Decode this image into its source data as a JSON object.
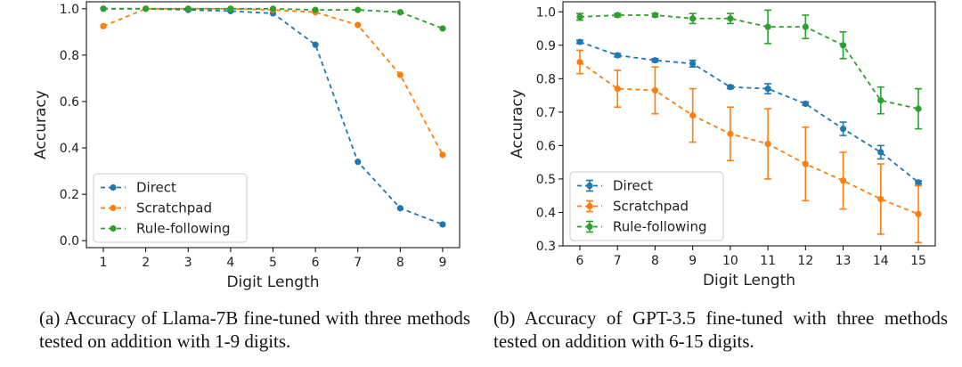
{
  "captions": {
    "a": "(a) Accuracy of Llama-7B fine-tuned with three methods tested on addition with 1-9 digits.",
    "b": "(b) Accuracy of GPT-3.5 fine-tuned with three methods tested on addition with 6-15 digits."
  },
  "chart_data": [
    {
      "type": "line",
      "xlabel": "Digit Length",
      "ylabel": "Accuracy",
      "x": [
        1,
        2,
        3,
        4,
        5,
        6,
        7,
        8,
        9
      ],
      "xlim": [
        0.6,
        9.4
      ],
      "ylim": [
        -0.03,
        1.03
      ],
      "yticks": [
        0.0,
        0.2,
        0.4,
        0.6,
        0.8,
        1.0
      ],
      "yticklabels": [
        "0.0",
        "0.2",
        "0.4",
        "0.6",
        "0.8",
        "1.0"
      ],
      "grid": false,
      "legend": "lower-left",
      "error_bars": false,
      "series": [
        {
          "name": "Direct",
          "color": "#1f77b4",
          "values": [
            1.0,
            1.0,
            0.995,
            0.99,
            0.98,
            0.845,
            0.34,
            0.14,
            0.07
          ]
        },
        {
          "name": "Scratchpad",
          "color": "#ff7f0e",
          "values": [
            0.925,
            1.0,
            1.0,
            1.0,
            0.995,
            0.985,
            0.93,
            0.715,
            0.37
          ]
        },
        {
          "name": "Rule-following",
          "color": "#2ca02c",
          "values": [
            1.0,
            1.0,
            1.0,
            1.0,
            1.0,
            0.995,
            0.995,
            0.985,
            0.915
          ]
        }
      ]
    },
    {
      "type": "line",
      "xlabel": "Digit Length",
      "ylabel": "Accuracy",
      "x": [
        6,
        7,
        8,
        9,
        10,
        11,
        12,
        13,
        14,
        15
      ],
      "xlim": [
        5.55,
        15.45
      ],
      "ylim": [
        0.3,
        1.03
      ],
      "yticks": [
        0.3,
        0.4,
        0.5,
        0.6,
        0.7,
        0.8,
        0.9,
        1.0
      ],
      "yticklabels": [
        "0.3",
        "0.4",
        "0.5",
        "0.6",
        "0.7",
        "0.8",
        "0.9",
        "1.0"
      ],
      "grid": false,
      "legend": "lower-left",
      "error_bars": true,
      "series": [
        {
          "name": "Direct",
          "color": "#1f77b4",
          "values": [
            0.91,
            0.87,
            0.855,
            0.845,
            0.775,
            0.77,
            0.725,
            0.65,
            0.58,
            0.49
          ],
          "errors": [
            0.005,
            0.005,
            0.005,
            0.01,
            0.005,
            0.015,
            0.005,
            0.02,
            0.02,
            0.005
          ]
        },
        {
          "name": "Scratchpad",
          "color": "#ff7f0e",
          "values": [
            0.85,
            0.77,
            0.765,
            0.69,
            0.635,
            0.605,
            0.545,
            0.495,
            0.44,
            0.395
          ],
          "errors": [
            0.035,
            0.055,
            0.07,
            0.08,
            0.08,
            0.105,
            0.11,
            0.085,
            0.105,
            0.085
          ]
        },
        {
          "name": "Rule-following",
          "color": "#2ca02c",
          "values": [
            0.985,
            0.99,
            0.99,
            0.98,
            0.98,
            0.955,
            0.955,
            0.9,
            0.735,
            0.71
          ],
          "errors": [
            0.01,
            0.005,
            0.005,
            0.015,
            0.015,
            0.05,
            0.035,
            0.04,
            0.04,
            0.06
          ]
        }
      ]
    }
  ]
}
